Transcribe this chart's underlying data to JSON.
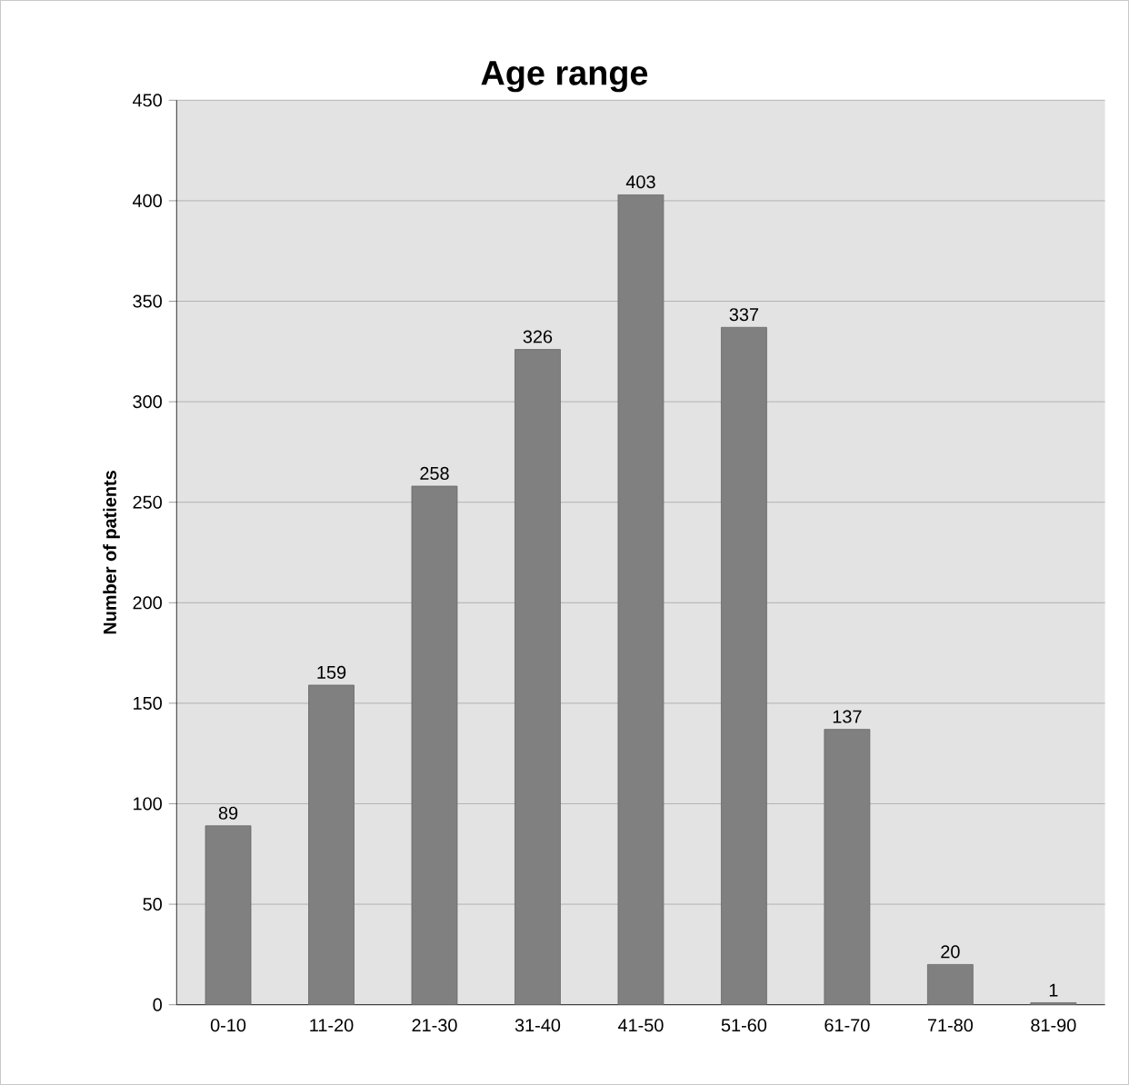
{
  "chart_data": {
    "type": "bar",
    "title": "Age range",
    "ylabel": "Number of patients",
    "categories": [
      "0-10",
      "11-20",
      "21-30",
      "31-40",
      "41-50",
      "51-60",
      "61-70",
      "71-80",
      "81-90"
    ],
    "values": [
      89,
      159,
      258,
      326,
      403,
      337,
      137,
      20,
      1
    ],
    "color": "#808080",
    "ylim": [
      0,
      450
    ],
    "yticks": [
      0,
      50,
      100,
      150,
      200,
      250,
      300,
      350,
      400,
      450
    ],
    "grid": "y",
    "data_labels": true
  }
}
